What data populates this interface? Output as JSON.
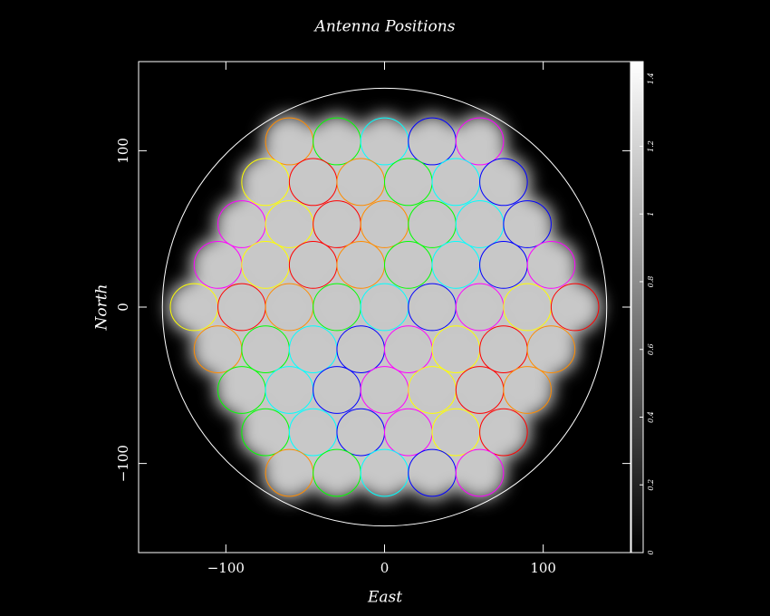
{
  "chart_data": {
    "type": "scatter",
    "title": "Antenna Positions",
    "xlabel": "East",
    "ylabel": "North",
    "x": [
      -60,
      -30,
      0,
      30,
      60,
      -75,
      -45,
      -15,
      15,
      45,
      75,
      -90,
      -60,
      -30,
      0,
      30,
      60,
      90,
      -105,
      -75,
      -45,
      -15,
      15,
      45,
      75,
      105,
      -120,
      -90,
      -60,
      -30,
      0,
      30,
      60,
      90,
      120,
      -105,
      -75,
      -45,
      -15,
      15,
      45,
      75,
      105,
      -90,
      -60,
      -30,
      0,
      30,
      60,
      90,
      -75,
      -45,
      -15,
      15,
      45,
      75,
      -60,
      -30,
      0,
      30,
      60
    ],
    "y": [
      106,
      106,
      106,
      106,
      106,
      80,
      80,
      80,
      80,
      80,
      80,
      53,
      53,
      53,
      53,
      53,
      53,
      53,
      27,
      27,
      27,
      27,
      27,
      27,
      27,
      27,
      0,
      0,
      0,
      0,
      0,
      0,
      0,
      0,
      0,
      -27,
      -27,
      -27,
      -27,
      -27,
      -27,
      -27,
      -27,
      -53,
      -53,
      -53,
      -53,
      -53,
      -53,
      -53,
      -80,
      -80,
      -80,
      -80,
      -80,
      -80,
      -106,
      -106,
      -106,
      -106,
      -106
    ],
    "marker_radius": 15,
    "colors": [
      "#ff8c00",
      "#00ff00",
      "#00ffff",
      "#0000ff",
      "#ff00ff",
      "#ffff00",
      "#ff0000"
    ],
    "outer_radius": 140,
    "xlim": [
      -155,
      155
    ],
    "ylim": [
      -157,
      157
    ],
    "xticks": [
      {
        "value": -100,
        "label": "−100"
      },
      0,
      100
    ],
    "yticks": [
      {
        "value": -100,
        "label": "−100"
      },
      0,
      100
    ],
    "colorbar": {
      "lim": [
        0,
        1.45
      ],
      "ticks": [
        0,
        0.2,
        0.4,
        0.6,
        0.8,
        1,
        1.2,
        1.4
      ]
    }
  }
}
